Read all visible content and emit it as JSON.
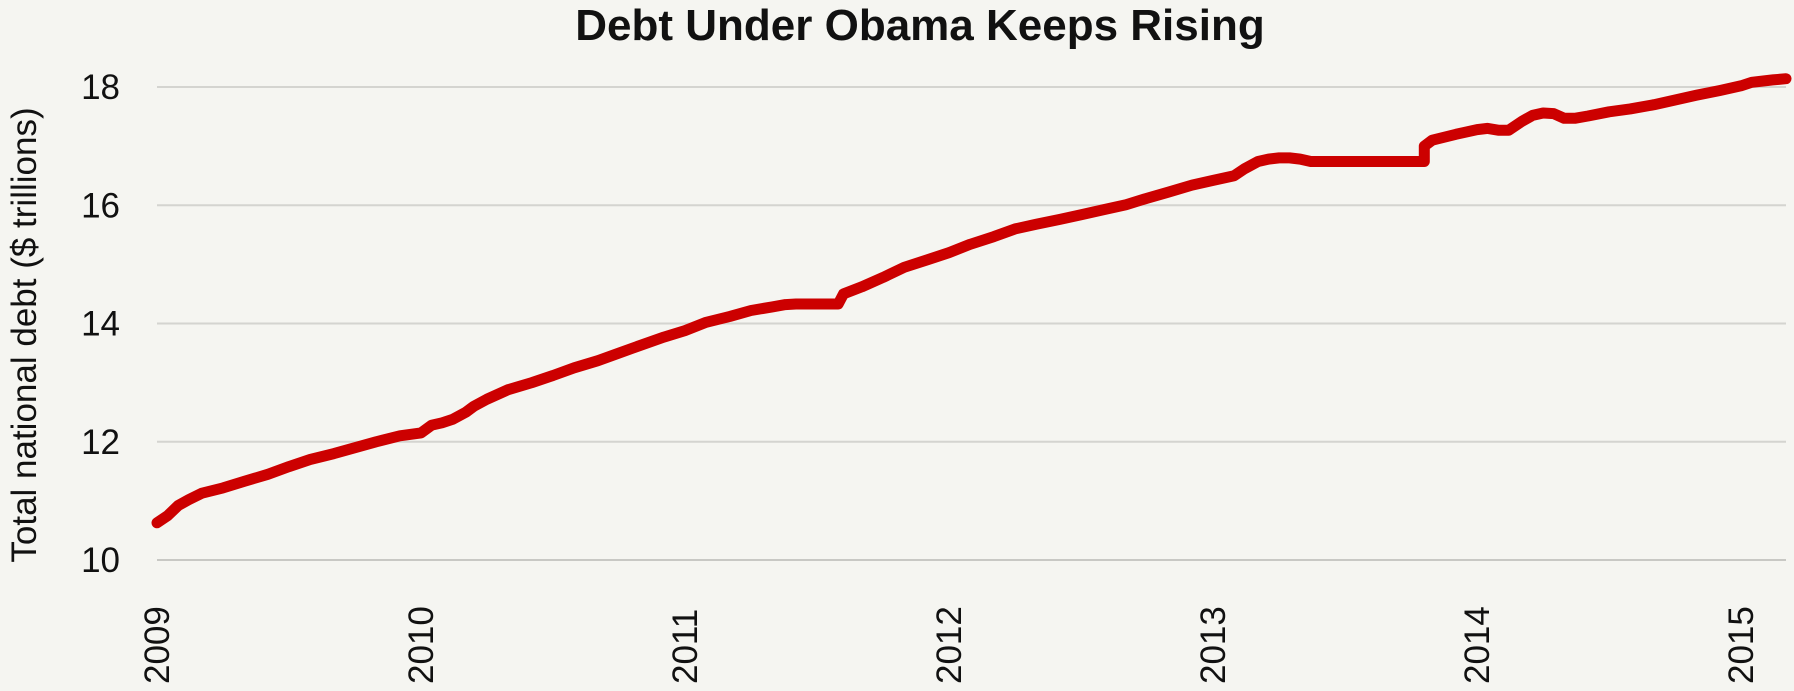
{
  "chart_data": {
    "type": "line",
    "title": "Debt Under Obama Keeps Rising",
    "xlabel": "",
    "ylabel": "Total national debt ($ trillions)",
    "xlim": [
      2009,
      2015.17
    ],
    "ylim": [
      10,
      18.5
    ],
    "y_ticks": [
      10,
      12,
      14,
      16,
      18
    ],
    "x_ticks": [
      2009,
      2010,
      2011,
      2012,
      2013,
      2014,
      2015
    ],
    "y_tick_labels": [
      "10",
      "12",
      "14",
      "16",
      "18"
    ],
    "x_tick_labels": [
      "2009",
      "2010",
      "2011",
      "2012",
      "2013",
      "2014",
      "2015"
    ],
    "grid": "horizontal",
    "color": "#cc0000",
    "series": [
      {
        "x": [
          2009.0,
          2009.04,
          2009.08,
          2009.12,
          2009.17,
          2009.25,
          2009.33,
          2009.42,
          2009.5,
          2009.58,
          2009.67,
          2009.75,
          2009.83,
          2009.92,
          2010.0,
          2010.04,
          2010.08,
          2010.12,
          2010.17,
          2010.2,
          2010.25,
          2010.33,
          2010.42,
          2010.5,
          2010.58,
          2010.67,
          2010.75,
          2010.83,
          2010.92,
          2011.0,
          2011.08,
          2011.17,
          2011.25,
          2011.33,
          2011.38,
          2011.42,
          2011.5,
          2011.58,
          2011.6,
          2011.67,
          2011.75,
          2011.83,
          2011.92,
          2012.0,
          2012.08,
          2012.17,
          2012.25,
          2012.33,
          2012.42,
          2012.5,
          2012.58,
          2012.67,
          2012.75,
          2012.83,
          2012.92,
          2013.0,
          2013.08,
          2013.12,
          2013.17,
          2013.21,
          2013.25,
          2013.29,
          2013.33,
          2013.37,
          2013.4,
          2013.5,
          2013.6,
          2013.7,
          2013.8,
          2013.8,
          2013.83,
          2013.92,
          2014.0,
          2014.04,
          2014.08,
          2014.12,
          2014.17,
          2014.21,
          2014.25,
          2014.29,
          2014.33,
          2014.37,
          2014.42,
          2014.5,
          2014.58,
          2014.67,
          2014.75,
          2014.83,
          2014.92,
          2015.0,
          2015.04,
          2015.08,
          2015.12,
          2015.17
        ],
        "values": [
          10.63,
          10.75,
          10.92,
          11.02,
          11.13,
          11.22,
          11.33,
          11.45,
          11.58,
          11.7,
          11.8,
          11.9,
          12.0,
          12.1,
          12.15,
          12.28,
          12.32,
          12.38,
          12.5,
          12.6,
          12.72,
          12.88,
          13.0,
          13.12,
          13.25,
          13.37,
          13.5,
          13.63,
          13.77,
          13.88,
          14.02,
          14.12,
          14.22,
          14.28,
          14.32,
          14.33,
          14.33,
          14.33,
          14.5,
          14.62,
          14.78,
          14.95,
          15.08,
          15.2,
          15.34,
          15.47,
          15.6,
          15.68,
          15.76,
          15.84,
          15.92,
          16.01,
          16.12,
          16.22,
          16.34,
          16.42,
          16.5,
          16.62,
          16.74,
          16.78,
          16.8,
          16.8,
          16.78,
          16.74,
          16.74,
          16.74,
          16.74,
          16.74,
          16.74,
          17.0,
          17.1,
          17.2,
          17.28,
          17.3,
          17.27,
          17.27,
          17.42,
          17.52,
          17.56,
          17.55,
          17.47,
          17.47,
          17.51,
          17.58,
          17.63,
          17.7,
          17.78,
          17.86,
          17.94,
          18.02,
          18.08,
          18.1,
          18.12,
          18.14
        ]
      }
    ]
  }
}
